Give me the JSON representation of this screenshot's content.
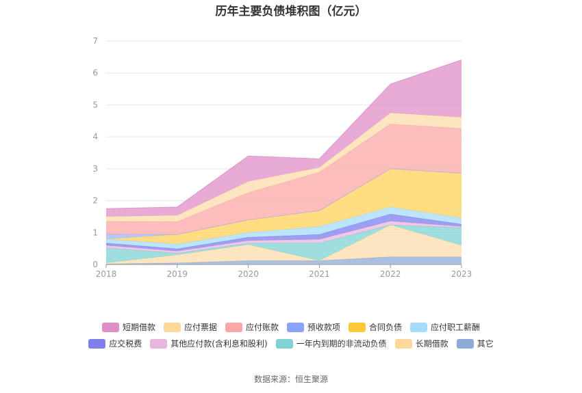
{
  "title": "历年主要负债堆积图（亿元）",
  "source": "数据来源：恒生聚源",
  "chart_data": {
    "type": "area",
    "stacked": true,
    "title": "历年主要负债堆积图（亿元）",
    "unit": "亿元",
    "categories": [
      "2018",
      "2019",
      "2020",
      "2021",
      "2022",
      "2023"
    ],
    "ylim": [
      0,
      7
    ],
    "yticks": [
      0,
      1,
      2,
      3,
      4,
      5,
      6,
      7
    ],
    "grid": true,
    "legend_position": "bottom",
    "series": [
      {
        "name": "其它",
        "color": "#8eaad8",
        "values": [
          0.02,
          0.05,
          0.12,
          0.12,
          0.24,
          0.24
        ]
      },
      {
        "name": "长期借款",
        "color": "#fcdcab",
        "values": [
          0.03,
          0.25,
          0.5,
          0.0,
          1.0,
          0.36
        ]
      },
      {
        "name": "一年内到期的非流动负债",
        "color": "#7fd3d3",
        "values": [
          0.47,
          0.05,
          0.05,
          0.55,
          0.0,
          0.55
        ]
      },
      {
        "name": "其他应付款(含利息和股利)",
        "color": "#e8b6dc",
        "values": [
          0.08,
          0.07,
          0.08,
          0.12,
          0.12,
          0.04
        ]
      },
      {
        "name": "应交税费",
        "color": "#7f7fee",
        "values": [
          0.07,
          0.07,
          0.1,
          0.15,
          0.22,
          0.07
        ]
      },
      {
        "name": "应付职工薪酬",
        "color": "#a6dcfa",
        "values": [
          0.13,
          0.15,
          0.15,
          0.25,
          0.22,
          0.2
        ]
      },
      {
        "name": "合同负债",
        "color": "#ffd35a",
        "values": [
          0.0,
          0.3,
          0.4,
          0.5,
          1.2,
          1.4
        ]
      },
      {
        "name": "预收款项",
        "color": "#9fb5fb",
        "values": [
          0.15,
          0.0,
          0.0,
          0.0,
          0.0,
          0.0
        ]
      },
      {
        "name": "应付账款",
        "color": "#f9a8a6",
        "values": [
          0.4,
          0.4,
          0.85,
          1.2,
          1.4,
          1.4
        ]
      },
      {
        "name": "应付票据",
        "color": "#fcdcab",
        "values": [
          0.15,
          0.2,
          0.35,
          0.15,
          0.35,
          0.35
        ]
      },
      {
        "name": "短期借款",
        "color": "#df8fc8",
        "values": [
          0.25,
          0.26,
          0.8,
          0.27,
          0.9,
          1.8
        ]
      }
    ]
  },
  "legend": {
    "row1": [
      {
        "name": "短期借款",
        "color": "#df8fc8"
      },
      {
        "name": "应付票据",
        "color": "#fcd89b"
      },
      {
        "name": "应付账款",
        "color": "#f9a8a6"
      },
      {
        "name": "预收款项",
        "color": "#8ba4fb"
      },
      {
        "name": "合同负债",
        "color": "#ffc83a"
      },
      {
        "name": "应付职工薪酬",
        "color": "#a6dcfa"
      }
    ],
    "row2": [
      {
        "name": "应交税费",
        "color": "#7f7fee"
      },
      {
        "name": "其他应付款(含利息和股利)",
        "color": "#e8b6dc"
      },
      {
        "name": "一年内到期的非流动负债",
        "color": "#7fd3d3"
      },
      {
        "name": "长期借款",
        "color": "#fcd89b"
      },
      {
        "name": "其它",
        "color": "#8eaad8"
      }
    ]
  }
}
